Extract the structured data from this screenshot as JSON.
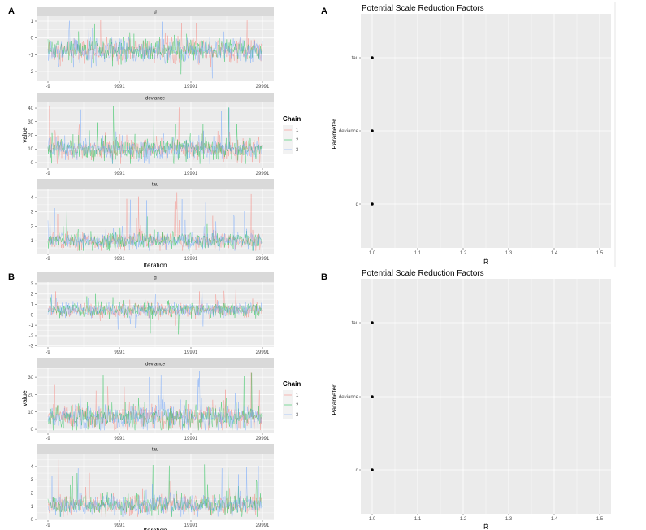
{
  "figure": {
    "panel_labels": [
      "A",
      "A",
      "B",
      "B"
    ]
  },
  "colors": {
    "panel_bg": "#EBEBEB",
    "grid": "#FFFFFF",
    "strip_bg": "#D9D9D9",
    "chain_1": "#F8766D",
    "chain_2": "#00BA38",
    "chain_3": "#619CFF",
    "point": "#000000"
  },
  "chart_data": [
    {
      "id": "A-trace",
      "type": "line",
      "panel_label": "A",
      "xlabel": "Iteration",
      "ylabel": "value",
      "x_ticks": [
        "-9",
        "9991",
        "19991",
        "29991"
      ],
      "xlim": [
        -9,
        29991
      ],
      "legend": {
        "title": "Chain",
        "entries": [
          "1",
          "2",
          "3"
        ],
        "placement": "right"
      },
      "grid": true,
      "facets": [
        {
          "strip": "d",
          "ylim": [
            -2.58,
            1.29
          ],
          "y_ticks": [
            "1",
            "0",
            "-1",
            "-2"
          ],
          "y_tick_values": [
            1,
            0,
            -1,
            -2
          ],
          "approx_center": -0.75,
          "approx_sd": 0.35,
          "approx_range": [
            -2.4,
            1.1
          ]
        },
        {
          "strip": "deviance",
          "ylim": [
            -4.2,
            44.2
          ],
          "y_ticks": [
            "40",
            "30",
            "20",
            "10",
            "0"
          ],
          "y_tick_values": [
            40,
            30,
            20,
            10,
            0
          ],
          "approx_center": 10,
          "approx_sd": 4,
          "approx_range": [
            -1,
            42
          ]
        },
        {
          "strip": "tau",
          "ylim": [
            0.11,
            4.62
          ],
          "y_ticks": [
            "4",
            "3",
            "2",
            "1"
          ],
          "y_tick_values": [
            4,
            3,
            2,
            1
          ],
          "approx_center": 1.0,
          "approx_sd": 0.28,
          "approx_range": [
            0.3,
            4.4
          ]
        }
      ]
    },
    {
      "id": "A-psrf",
      "type": "scatter",
      "panel_label": "A",
      "title": "Potential Scale Reduction Factors",
      "xlabel": "R̂",
      "ylabel": "Parameter",
      "xlim": [
        0.975,
        1.525
      ],
      "x_ticks": [
        "1.0",
        "1.1",
        "1.2",
        "1.3",
        "1.4",
        "1.5"
      ],
      "x_tick_values": [
        1.0,
        1.1,
        1.2,
        1.3,
        1.4,
        1.5
      ],
      "categories": [
        "d",
        "deviance",
        "tau"
      ],
      "values": [
        1.0,
        1.0,
        1.0
      ],
      "grid": true
    },
    {
      "id": "B-trace",
      "type": "line",
      "panel_label": "B",
      "xlabel": "Iteration",
      "ylabel": "value",
      "x_ticks": [
        "-9",
        "9991",
        "19991",
        "29991"
      ],
      "xlim": [
        -9,
        29991
      ],
      "legend": {
        "title": "Chain",
        "entries": [
          "1",
          "2",
          "3"
        ],
        "placement": "right"
      },
      "grid": true,
      "facets": [
        {
          "strip": "d",
          "ylim": [
            -3.1,
            3.15
          ],
          "y_ticks": [
            "3",
            "2",
            "1",
            "0",
            "-1",
            "-2",
            "-3"
          ],
          "y_tick_values": [
            3,
            2,
            1,
            0,
            -1,
            -2,
            -3
          ],
          "approx_center": 0.45,
          "approx_sd": 0.35,
          "approx_range": [
            -2.8,
            2.8
          ]
        },
        {
          "strip": "deviance",
          "ylim": [
            -2.3,
            35.2
          ],
          "y_ticks": [
            "30",
            "20",
            "10",
            "0"
          ],
          "y_tick_values": [
            30,
            20,
            10,
            0
          ],
          "approx_center": 7,
          "approx_sd": 3.5,
          "approx_range": [
            -0.5,
            34
          ]
        },
        {
          "strip": "tau",
          "ylim": [
            -0.06,
            4.98
          ],
          "y_ticks": [
            "4",
            "3",
            "2",
            "1",
            "0"
          ],
          "y_tick_values": [
            4,
            3,
            2,
            1,
            0
          ],
          "approx_center": 1.1,
          "approx_sd": 0.38,
          "approx_range": [
            0.2,
            4.7
          ]
        }
      ]
    },
    {
      "id": "B-psrf",
      "type": "scatter",
      "panel_label": "B",
      "title": "Potential Scale Reduction Factors",
      "xlabel": "R̂",
      "ylabel": "Parameter",
      "xlim": [
        0.975,
        1.525
      ],
      "x_ticks": [
        "1.0",
        "1.1",
        "1.2",
        "1.3",
        "1.4",
        "1.5"
      ],
      "x_tick_values": [
        1.0,
        1.1,
        1.2,
        1.3,
        1.4,
        1.5
      ],
      "categories": [
        "d",
        "deviance",
        "tau"
      ],
      "values": [
        1.0,
        1.0,
        1.0
      ],
      "grid": true
    }
  ]
}
